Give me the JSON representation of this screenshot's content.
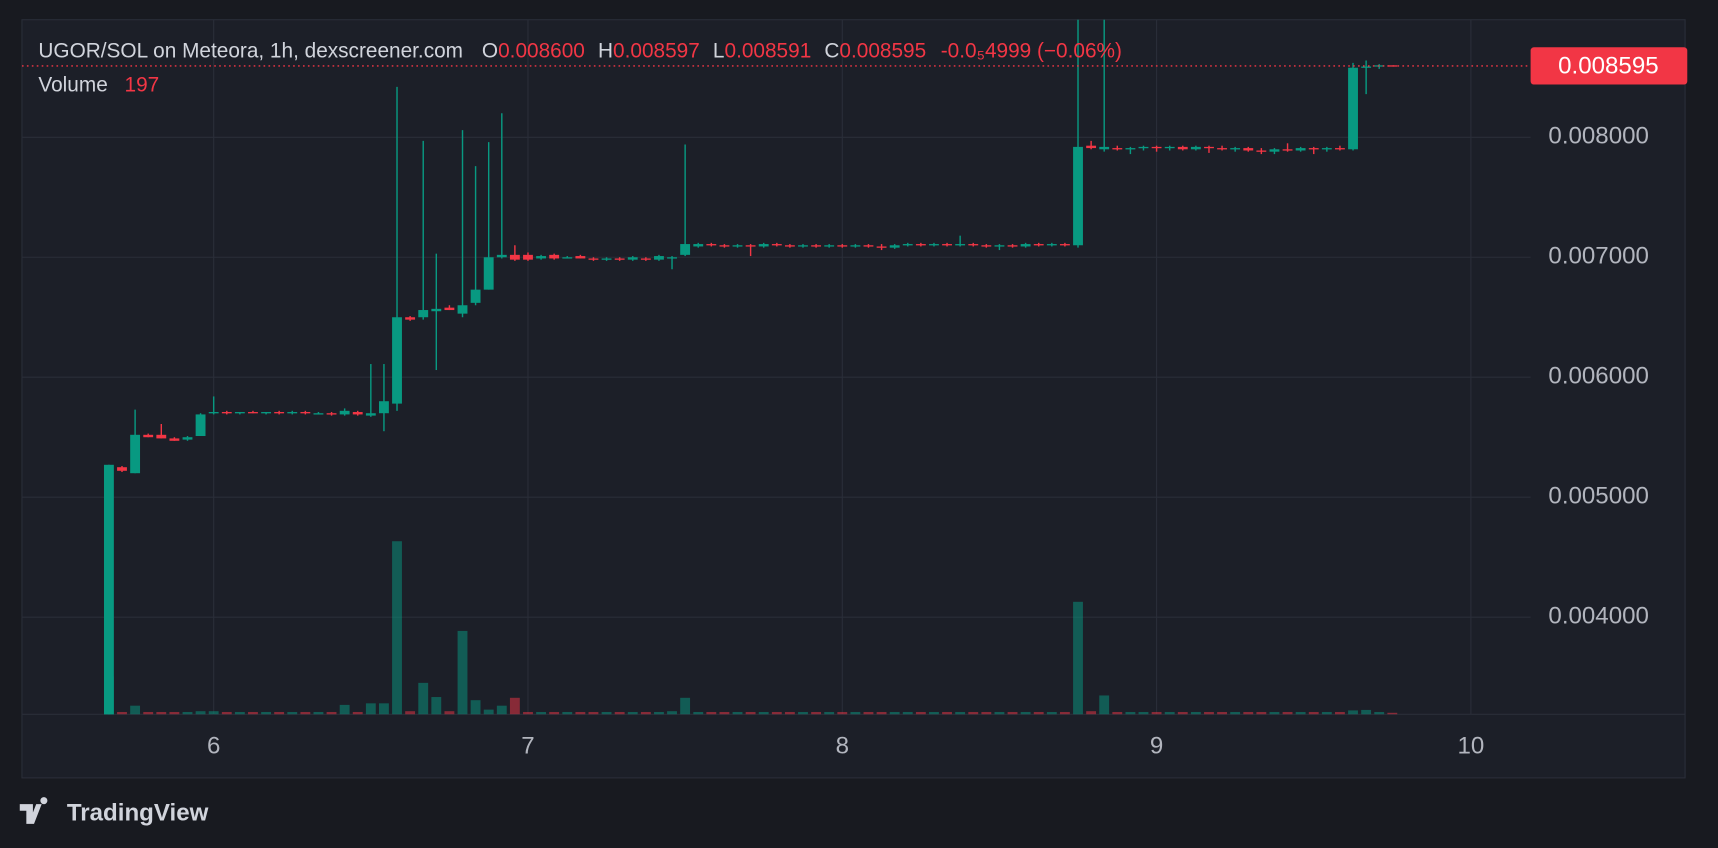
{
  "chart_data": {
    "type": "candlestick",
    "title": "UGOR/SOL on Meteora, 1h, dexscreener.com",
    "ohlc_legend": [
      {
        "label": "O",
        "value": "0.008600"
      },
      {
        "label": "H",
        "value": "0.008597"
      },
      {
        "label": "L",
        "value": "0.008591"
      },
      {
        "label": "C",
        "value": "0.008595"
      }
    ],
    "change": "-0.0₅4999 (−0.06%)",
    "volume_label": "Volume",
    "price_label": "0.008595",
    "up_color": "#089981",
    "down_color": "#f23645",
    "grid": true,
    "xlim": [
      5.39,
      10.19
    ],
    "xticks": [
      6,
      7,
      8,
      9,
      10
    ],
    "ylim": [
      0.00319,
      0.00898
    ],
    "yticks": [
      {
        "value": 0.004,
        "label": "0.004000"
      },
      {
        "value": 0.005,
        "label": "0.005000"
      },
      {
        "value": 0.006,
        "label": "0.006000"
      },
      {
        "value": 0.007,
        "label": "0.007000"
      },
      {
        "value": 0.008,
        "label": "0.008000"
      }
    ],
    "x": [
      5.6667,
      5.7083,
      5.75,
      5.7917,
      5.8333,
      5.875,
      5.9167,
      5.9583,
      6,
      6.0417,
      6.0833,
      6.125,
      6.1667,
      6.2083,
      6.25,
      6.2917,
      6.3333,
      6.375,
      6.4167,
      6.4583,
      6.5,
      6.5417,
      6.5833,
      6.625,
      6.6667,
      6.7083,
      6.75,
      6.7917,
      6.8333,
      6.875,
      6.9167,
      6.9583,
      7,
      7.0417,
      7.0833,
      7.125,
      7.1667,
      7.2083,
      7.25,
      7.2917,
      7.3333,
      7.375,
      7.4167,
      7.4583,
      7.5,
      7.5417,
      7.5833,
      7.625,
      7.6667,
      7.7083,
      7.75,
      7.7917,
      7.8333,
      7.875,
      7.9167,
      7.9583,
      8,
      8.0417,
      8.0833,
      8.125,
      8.1667,
      8.2083,
      8.25,
      8.2917,
      8.3333,
      8.375,
      8.4167,
      8.4583,
      8.5,
      8.5417,
      8.5833,
      8.625,
      8.6667,
      8.7083,
      8.75,
      8.7917,
      8.8333,
      8.875,
      8.9167,
      8.9583,
      9,
      9.0417,
      9.0833,
      9.125,
      9.1667,
      9.2083,
      9.25,
      9.2917,
      9.3333,
      9.375,
      9.4167,
      9.4583,
      9.5,
      9.5417,
      9.5833,
      9.625,
      9.6667,
      9.7083,
      9.75
    ],
    "open": [
      0.0031,
      0.00525,
      0.0052,
      0.00552,
      0.00552,
      0.00549,
      0.00548,
      0.00551,
      0.0057,
      0.00571,
      0.0057,
      0.00571,
      0.0057,
      0.00571,
      0.0057,
      0.00571,
      0.0057,
      0.0057,
      0.00569,
      0.00571,
      0.00568,
      0.0057,
      0.00578,
      0.0065,
      0.0065,
      0.00655,
      0.00658,
      0.00653,
      0.00662,
      0.00673,
      0.007,
      0.00702,
      0.00702,
      0.00699,
      0.00702,
      0.007,
      0.00701,
      0.00699,
      0.00698,
      0.00699,
      0.00698,
      0.00699,
      0.00698,
      0.00699,
      0.00702,
      0.00709,
      0.00711,
      0.0071,
      0.00709,
      0.0071,
      0.00709,
      0.00711,
      0.0071,
      0.00709,
      0.0071,
      0.00709,
      0.0071,
      0.00709,
      0.0071,
      0.00709,
      0.00708,
      0.0071,
      0.00711,
      0.0071,
      0.00711,
      0.0071,
      0.00711,
      0.0071,
      0.00709,
      0.0071,
      0.00709,
      0.00711,
      0.0071,
      0.00711,
      0.0071,
      0.00793,
      0.0079,
      0.00791,
      0.0079,
      0.00791,
      0.00792,
      0.00791,
      0.00792,
      0.0079,
      0.00792,
      0.00791,
      0.0079,
      0.00791,
      0.00789,
      0.00788,
      0.0079,
      0.00789,
      0.00791,
      0.0079,
      0.00791,
      0.0079,
      0.00858,
      0.00859,
      0.0086
    ],
    "high": [
      0.00527,
      0.00526,
      0.00573,
      0.00553,
      0.00561,
      0.0055,
      0.00551,
      0.0057,
      0.00584,
      0.00572,
      0.00571,
      0.00572,
      0.00571,
      0.00572,
      0.00572,
      0.00572,
      0.00571,
      0.00571,
      0.00574,
      0.00572,
      0.00611,
      0.00611,
      0.00842,
      0.00651,
      0.00797,
      0.00703,
      0.0066,
      0.00806,
      0.00776,
      0.00796,
      0.0082,
      0.0071,
      0.00704,
      0.00702,
      0.00703,
      0.00701,
      0.00702,
      0.007,
      0.007,
      0.007,
      0.00701,
      0.007,
      0.00702,
      0.00701,
      0.00794,
      0.00712,
      0.00712,
      0.00711,
      0.00711,
      0.00711,
      0.00712,
      0.00712,
      0.00711,
      0.00711,
      0.00711,
      0.00711,
      0.00711,
      0.00711,
      0.00711,
      0.00711,
      0.00711,
      0.00712,
      0.00712,
      0.00712,
      0.00712,
      0.00718,
      0.00712,
      0.00711,
      0.00711,
      0.00711,
      0.00712,
      0.00712,
      0.00712,
      0.00712,
      0.0092,
      0.00797,
      0.0092,
      0.00793,
      0.00792,
      0.00793,
      0.00793,
      0.00793,
      0.00793,
      0.00793,
      0.00793,
      0.00793,
      0.00792,
      0.00792,
      0.00791,
      0.00791,
      0.00795,
      0.00792,
      0.00792,
      0.00792,
      0.00793,
      0.00862,
      0.00864,
      0.00861,
      0.008597
    ],
    "low": [
      0.0031,
      0.00521,
      0.0052,
      0.0055,
      0.00549,
      0.00547,
      0.00547,
      0.00551,
      0.00569,
      0.00569,
      0.00569,
      0.0057,
      0.00569,
      0.00569,
      0.00569,
      0.00569,
      0.00569,
      0.00568,
      0.00568,
      0.00568,
      0.00567,
      0.00555,
      0.00572,
      0.00647,
      0.00648,
      0.00606,
      0.00656,
      0.0065,
      0.0066,
      0.00673,
      0.00699,
      0.00697,
      0.00697,
      0.00698,
      0.00698,
      0.00699,
      0.00699,
      0.00697,
      0.00697,
      0.00697,
      0.00697,
      0.00697,
      0.00697,
      0.0069,
      0.00701,
      0.00708,
      0.00709,
      0.00708,
      0.00708,
      0.00701,
      0.00708,
      0.00709,
      0.00708,
      0.00708,
      0.00708,
      0.00708,
      0.00708,
      0.00708,
      0.00708,
      0.00706,
      0.00707,
      0.00709,
      0.00709,
      0.00709,
      0.00709,
      0.00709,
      0.00709,
      0.00708,
      0.00706,
      0.00708,
      0.00708,
      0.00709,
      0.00709,
      0.00709,
      0.00708,
      0.0079,
      0.00788,
      0.00789,
      0.00786,
      0.00789,
      0.00788,
      0.00789,
      0.00789,
      0.00789,
      0.00787,
      0.00789,
      0.00788,
      0.00788,
      0.00786,
      0.00786,
      0.00788,
      0.00788,
      0.00786,
      0.00788,
      0.00789,
      0.00789,
      0.00836,
      0.00857,
      0.008591
    ],
    "close": [
      0.00527,
      0.00522,
      0.00552,
      0.0055,
      0.00549,
      0.00547,
      0.0055,
      0.00569,
      0.00571,
      0.0057,
      0.00571,
      0.0057,
      0.00571,
      0.0057,
      0.00571,
      0.0057,
      0.0057,
      0.00569,
      0.00572,
      0.00569,
      0.0057,
      0.0058,
      0.0065,
      0.00648,
      0.00656,
      0.00657,
      0.00656,
      0.0066,
      0.00673,
      0.007,
      0.00702,
      0.00698,
      0.00698,
      0.00701,
      0.00699,
      0.007,
      0.00699,
      0.00698,
      0.00699,
      0.00698,
      0.007,
      0.00698,
      0.00701,
      0.007,
      0.00711,
      0.00711,
      0.0071,
      0.00709,
      0.0071,
      0.00709,
      0.00711,
      0.0071,
      0.00709,
      0.0071,
      0.00709,
      0.0071,
      0.00709,
      0.0071,
      0.00709,
      0.00708,
      0.0071,
      0.00711,
      0.0071,
      0.00711,
      0.0071,
      0.00711,
      0.0071,
      0.00709,
      0.0071,
      0.00709,
      0.00711,
      0.0071,
      0.00711,
      0.0071,
      0.00792,
      0.00791,
      0.00792,
      0.0079,
      0.00791,
      0.00792,
      0.00791,
      0.00792,
      0.0079,
      0.00792,
      0.00791,
      0.0079,
      0.00791,
      0.00789,
      0.00788,
      0.0079,
      0.00789,
      0.00791,
      0.0079,
      0.00791,
      0.0079,
      0.00858,
      0.00859,
      0.0086,
      0.008595
    ],
    "volume": [
      4800,
      300,
      1100,
      300,
      300,
      300,
      300,
      400,
      400,
      300,
      300,
      300,
      300,
      300,
      300,
      300,
      300,
      300,
      1200,
      300,
      1400,
      1400,
      22000,
      400,
      4000,
      2200,
      400,
      10600,
      1800,
      600,
      1100,
      2100,
      300,
      300,
      300,
      300,
      300,
      300,
      300,
      300,
      300,
      300,
      300,
      400,
      2100,
      300,
      300,
      300,
      300,
      300,
      300,
      300,
      300,
      300,
      300,
      300,
      300,
      300,
      300,
      300,
      300,
      300,
      300,
      300,
      300,
      300,
      300,
      300,
      300,
      300,
      300,
      300,
      300,
      300,
      14300,
      400,
      2400,
      300,
      300,
      300,
      300,
      300,
      300,
      300,
      300,
      300,
      300,
      300,
      300,
      300,
      300,
      300,
      300,
      300,
      300,
      500,
      560,
      300,
      197
    ]
  }
}
